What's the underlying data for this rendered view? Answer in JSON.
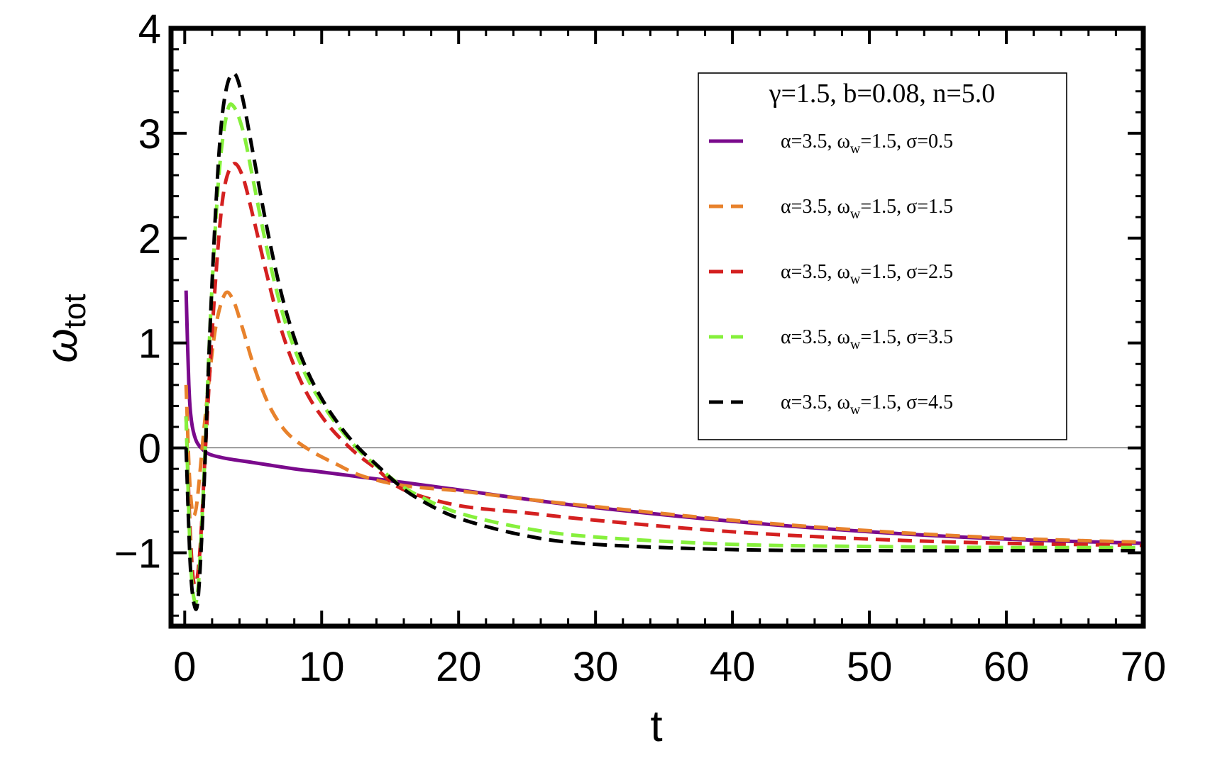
{
  "chart_data": {
    "type": "line",
    "xlabel": "t",
    "ylabel_main": "ω",
    "ylabel_sub": "tot",
    "xlim": [
      -1,
      70
    ],
    "ylim": [
      -1.7,
      4
    ],
    "x_ticks": [
      0,
      10,
      20,
      30,
      40,
      50,
      60,
      70
    ],
    "y_ticks": [
      {
        "value": 4,
        "label": "4"
      },
      {
        "value": 3,
        "label": "3"
      },
      {
        "value": 2,
        "label": "2"
      },
      {
        "value": 1,
        "label": "1"
      },
      {
        "value": 0,
        "label": "0"
      },
      {
        "value": -1,
        "label": "−1"
      }
    ],
    "zero_line": true,
    "grid": false,
    "legend": {
      "placement": "top-right",
      "title": "γ=1.5, b=0.08, n=5.0",
      "entries": [
        {
          "label": "α=3.5, ω",
          "sub": "w",
          "rest": "=1.5, σ=0.5"
        },
        {
          "label": "α=3.5, ω",
          "sub": "w",
          "rest": "=1.5, σ=1.5"
        },
        {
          "label": "α=3.5, ω",
          "sub": "w",
          "rest": "=1.5, σ=2.5"
        },
        {
          "label": "α=3.5, ω",
          "sub": "w",
          "rest": "=1.5, σ=3.5"
        },
        {
          "label": "α=3.5, ω",
          "sub": "w",
          "rest": "=1.5, σ=4.5"
        }
      ]
    },
    "series": [
      {
        "color": "#7a0a8c",
        "dashed": false,
        "x": [
          0.1,
          0.3,
          0.5,
          0.8,
          1.2,
          1.8,
          3,
          5,
          8,
          10,
          13,
          16,
          20,
          25,
          30,
          40,
          50,
          60,
          70
        ],
        "y": [
          1.5,
          0.6,
          0.25,
          0.08,
          0.0,
          -0.06,
          -0.1,
          -0.14,
          -0.2,
          -0.23,
          -0.28,
          -0.33,
          -0.4,
          -0.49,
          -0.57,
          -0.7,
          -0.8,
          -0.87,
          -0.91
        ]
      },
      {
        "color": "#e8822c",
        "dashed": true,
        "x": [
          0.1,
          0.4,
          0.8,
          1.5,
          2.2,
          2.9,
          3.5,
          4.2,
          5,
          6,
          7,
          8,
          9.5,
          11,
          13,
          16,
          20,
          25,
          30,
          40,
          50,
          60,
          70
        ],
        "y": [
          0.6,
          -0.4,
          -0.6,
          0.3,
          1.1,
          1.46,
          1.42,
          1.15,
          0.8,
          0.45,
          0.22,
          0.08,
          -0.05,
          -0.15,
          -0.27,
          -0.36,
          -0.41,
          -0.49,
          -0.56,
          -0.69,
          -0.79,
          -0.86,
          -0.9
        ]
      },
      {
        "color": "#d42020",
        "dashed": true,
        "x": [
          0.1,
          0.4,
          0.7,
          1.1,
          1.6,
          2.2,
          2.8,
          3.5,
          4.2,
          5,
          6,
          7,
          8,
          9,
          10,
          11,
          12.5,
          14,
          16,
          20,
          25,
          30,
          40,
          50,
          60,
          70
        ],
        "y": [
          0.3,
          -0.8,
          -1.3,
          -1.0,
          0.2,
          1.5,
          2.4,
          2.7,
          2.6,
          2.2,
          1.65,
          1.15,
          0.78,
          0.5,
          0.3,
          0.14,
          -0.05,
          -0.2,
          -0.4,
          -0.55,
          -0.62,
          -0.69,
          -0.8,
          -0.87,
          -0.91,
          -0.93
        ]
      },
      {
        "color": "#86f03c",
        "dashed": true,
        "x": [
          0.1,
          0.4,
          0.7,
          1.0,
          1.4,
          1.9,
          2.5,
          3.1,
          3.6,
          4.3,
          5,
          6,
          7,
          8,
          9,
          10,
          11,
          12,
          13,
          14,
          15.5,
          17,
          20,
          25,
          30,
          40,
          50,
          60,
          70
        ],
        "y": [
          0.3,
          -1.0,
          -1.45,
          -1.3,
          -0.3,
          1.3,
          2.6,
          3.2,
          3.25,
          3.0,
          2.55,
          1.9,
          1.35,
          0.95,
          0.65,
          0.43,
          0.24,
          0.08,
          -0.06,
          -0.17,
          -0.33,
          -0.45,
          -0.62,
          -0.77,
          -0.85,
          -0.92,
          -0.94,
          -0.95,
          -0.95
        ]
      },
      {
        "color": "#000000",
        "dashed": true,
        "x": [
          0.1,
          0.4,
          0.7,
          1.0,
          1.4,
          1.9,
          2.5,
          3.0,
          3.6,
          4.2,
          5,
          6,
          7,
          8,
          9,
          10,
          11,
          12,
          13,
          14,
          15.5,
          17,
          20,
          25,
          30,
          40,
          50,
          60,
          70
        ],
        "y": [
          0.0,
          -1.1,
          -1.5,
          -1.4,
          -0.4,
          1.3,
          2.8,
          3.4,
          3.57,
          3.35,
          2.8,
          2.1,
          1.5,
          1.05,
          0.72,
          0.47,
          0.27,
          0.1,
          -0.04,
          -0.16,
          -0.34,
          -0.48,
          -0.67,
          -0.84,
          -0.92,
          -0.97,
          -0.98,
          -0.98,
          -0.98
        ]
      }
    ]
  }
}
